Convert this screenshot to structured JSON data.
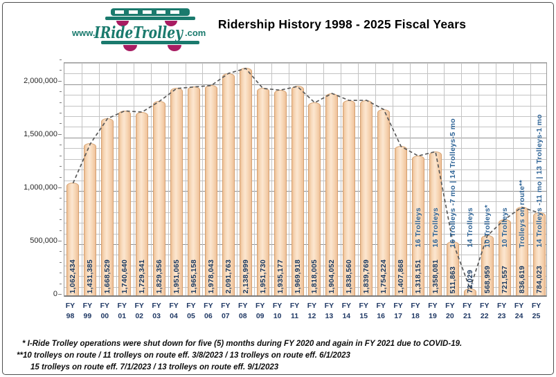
{
  "header": {
    "title": "Ridership History 1998 - 2025 Fiscal Years",
    "logo": {
      "prefix": "www.",
      "name": "IRideTrolley",
      "suffix": ".com"
    }
  },
  "chart_data": {
    "type": "bar",
    "title": "Ridership History 1998 - 2025 Fiscal Years",
    "categories": [
      "FY 98",
      "FY 99",
      "FY 00",
      "FY 01",
      "FY 02",
      "FY 03",
      "FY 04",
      "FY 05",
      "FY 06",
      "FY 07",
      "FY 08",
      "FY 09",
      "FY 10",
      "FY 11",
      "FY 12",
      "FY 13",
      "FY 14",
      "FY 15",
      "FY 16",
      "FY 17",
      "FY 18",
      "FY 19",
      "FY 20",
      "FY 21",
      "FY 22",
      "FY 23",
      "FY 24",
      "FY 25"
    ],
    "values": [
      1062434,
      1431385,
      1668529,
      1740640,
      1729341,
      1829356,
      1951065,
      1965158,
      1978043,
      2091763,
      2138999,
      1951730,
      1935177,
      1969918,
      1818005,
      1904052,
      1838560,
      1839769,
      1754224,
      1407868,
      1318151,
      1358081,
      511863,
      72029,
      568959,
      721557,
      836619,
      784023
    ],
    "value_labels": [
      "1,062,434",
      "1,431,385",
      "1,668,529",
      "1,740,640",
      "1,729,341",
      "1,829,356",
      "1,951,065",
      "1,965,158",
      "1,978,043",
      "2,091,763",
      "2,138,999",
      "1,951,730",
      "1,935,177",
      "1,969,918",
      "1,818,005",
      "1,904,052",
      "1,838,560",
      "1,839,769",
      "1,754,224",
      "1,407,868",
      "1,318,151",
      "1,358,081",
      "511,863",
      "72,029",
      "568,959",
      "721,557",
      "836,619",
      "784,023"
    ],
    "annotations": [
      "",
      "",
      "",
      "",
      "",
      "",
      "",
      "",
      "",
      "",
      "",
      "",
      "",
      "",
      "",
      "",
      "",
      "",
      "",
      "",
      "16 Trolleys",
      "16 Trolleys",
      "16 Trolleys -7 mo | 14 Trolleys-5 mo",
      "14 Trolleys",
      "10 Trolleys*",
      "10 Trolleys",
      "Trolleys on route**",
      "14 Trolleys -11 mo | 13 Trolleys-1 mo"
    ],
    "ylim": [
      0,
      2200000
    ],
    "y_major_tick_labels": [
      "0",
      "500,000",
      "1,000,000",
      "1,500,000",
      "2,000,000"
    ],
    "y_major_tick_values": [
      0,
      500000,
      1000000,
      1500000,
      2000000
    ],
    "y_minor_step": 100000,
    "grid": "on",
    "trendline": "dashed gray line connecting bar tops",
    "bar_color": "#f6d4b2",
    "annotation_color": "#2d6396",
    "value_label_color": "#17365d",
    "xlabel": "",
    "ylabel": ""
  },
  "footnotes": [
    "* I-Ride Trolley operations were shut down for five (5) months during FY 2020  and again in FY 2021 due to COVID-19.",
    "**10 trolleys on route / 11 trolleys on route eff. 3/8/2023 / 13 trolleys on route eff. 6/1/2023",
    "15 trolleys on route eff. 7/1/2023 / 13 trolleys on route eff. 9/1/2023"
  ],
  "colors": {
    "teal": "#1a7a6d",
    "magenta": "#a81c62",
    "trend": "#595959"
  }
}
